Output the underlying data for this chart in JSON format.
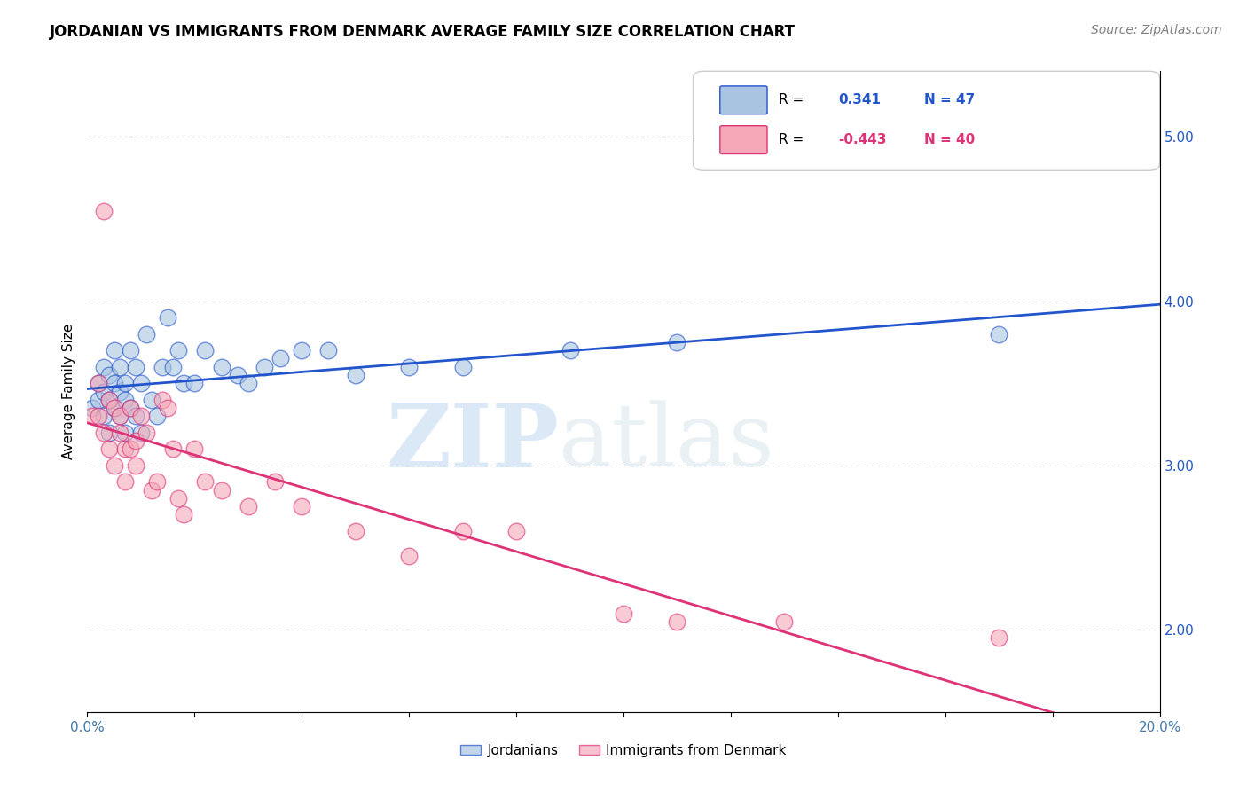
{
  "title": "JORDANIAN VS IMMIGRANTS FROM DENMARK AVERAGE FAMILY SIZE CORRELATION CHART",
  "source": "Source: ZipAtlas.com",
  "ylabel": "Average Family Size",
  "xlim": [
    0.0,
    0.2
  ],
  "ylim": [
    1.5,
    5.4
  ],
  "right_yticks": [
    2.0,
    3.0,
    4.0,
    5.0
  ],
  "blue_R": 0.341,
  "blue_N": 47,
  "pink_R": -0.443,
  "pink_N": 40,
  "blue_color": "#a8c4e0",
  "pink_color": "#f4a8b8",
  "blue_line_color": "#2255cc",
  "pink_line_color": "#dd3377",
  "watermark_zip": "ZIP",
  "watermark_atlas": "atlas",
  "blue_scatter_x": [
    0.001,
    0.002,
    0.002,
    0.003,
    0.003,
    0.003,
    0.004,
    0.004,
    0.004,
    0.005,
    0.005,
    0.005,
    0.006,
    0.006,
    0.006,
    0.007,
    0.007,
    0.007,
    0.008,
    0.008,
    0.009,
    0.009,
    0.01,
    0.01,
    0.011,
    0.012,
    0.013,
    0.014,
    0.015,
    0.016,
    0.017,
    0.018,
    0.02,
    0.022,
    0.025,
    0.028,
    0.03,
    0.033,
    0.036,
    0.04,
    0.045,
    0.05,
    0.06,
    0.07,
    0.09,
    0.11,
    0.17
  ],
  "blue_scatter_y": [
    3.35,
    3.5,
    3.4,
    3.3,
    3.6,
    3.45,
    3.2,
    3.4,
    3.55,
    3.7,
    3.5,
    3.35,
    3.3,
    3.6,
    3.45,
    3.2,
    3.5,
    3.4,
    3.7,
    3.35,
    3.3,
    3.6,
    3.2,
    3.5,
    3.8,
    3.4,
    3.3,
    3.6,
    3.9,
    3.6,
    3.7,
    3.5,
    3.5,
    3.7,
    3.6,
    3.55,
    3.5,
    3.6,
    3.65,
    3.7,
    3.7,
    3.55,
    3.6,
    3.6,
    3.7,
    3.75,
    3.8
  ],
  "pink_scatter_x": [
    0.001,
    0.002,
    0.002,
    0.003,
    0.003,
    0.004,
    0.004,
    0.005,
    0.005,
    0.006,
    0.006,
    0.007,
    0.007,
    0.008,
    0.008,
    0.009,
    0.009,
    0.01,
    0.011,
    0.012,
    0.013,
    0.014,
    0.015,
    0.016,
    0.017,
    0.018,
    0.02,
    0.022,
    0.025,
    0.03,
    0.035,
    0.04,
    0.05,
    0.06,
    0.07,
    0.08,
    0.1,
    0.11,
    0.13,
    0.17
  ],
  "pink_scatter_y": [
    3.3,
    3.5,
    3.3,
    4.55,
    3.2,
    3.4,
    3.1,
    3.35,
    3.0,
    3.3,
    3.2,
    2.9,
    3.1,
    3.35,
    3.1,
    3.15,
    3.0,
    3.3,
    3.2,
    2.85,
    2.9,
    3.4,
    3.35,
    3.1,
    2.8,
    2.7,
    3.1,
    2.9,
    2.85,
    2.75,
    2.9,
    2.75,
    2.6,
    2.45,
    2.6,
    2.6,
    2.1,
    2.05,
    2.05,
    1.95
  ]
}
